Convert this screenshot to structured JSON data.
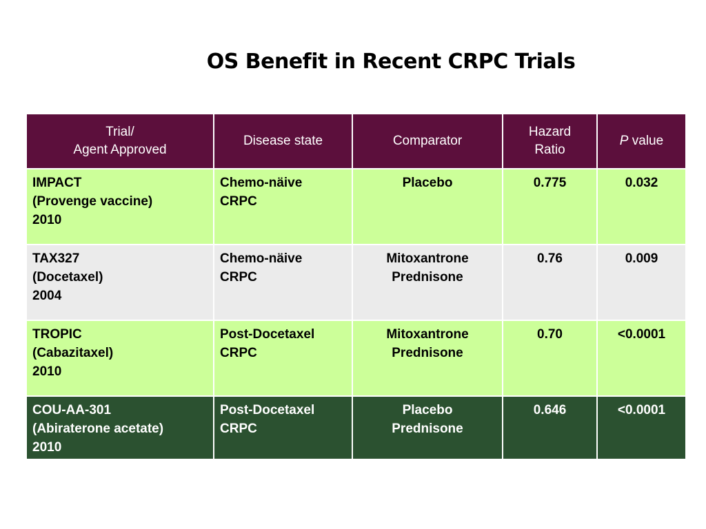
{
  "title": "OS Benefit in Recent CRPC Trials",
  "colors": {
    "header_bg": "#5c0f3c",
    "light_green_row": "#ccff99",
    "grey_row": "#ebebeb",
    "dark_green_row": "#2b5130",
    "header_text": "#ffffff"
  },
  "table": {
    "headers": {
      "trial": [
        "Trial/",
        "Agent Approved"
      ],
      "disease_state": "Disease state",
      "comparator": "Comparator",
      "hazard_ratio": [
        "Hazard",
        "Ratio"
      ],
      "p_value_italic": "P",
      "p_value_rest": " value"
    },
    "rows": [
      {
        "trial": [
          "IMPACT",
          "(Provenge vaccine)",
          "2010"
        ],
        "disease_state": [
          "Chemo-näive",
          "CRPC"
        ],
        "comparator": [
          "Placebo"
        ],
        "hazard_ratio": "0.775",
        "p_value": "0.032",
        "bg": "#ccff99",
        "fg": "#000000"
      },
      {
        "trial": [
          "TAX327",
          "(Docetaxel)",
          "2004"
        ],
        "disease_state": [
          "Chemo-näive",
          "CRPC"
        ],
        "comparator": [
          "Mitoxantrone",
          "Prednisone"
        ],
        "hazard_ratio": "0.76",
        "p_value": "0.009",
        "bg": "#ebebeb",
        "fg": "#000000"
      },
      {
        "trial": [
          "TROPIC",
          "(Cabazitaxel)",
          "2010"
        ],
        "disease_state": [
          "Post-Docetaxel",
          "CRPC"
        ],
        "comparator": [
          "Mitoxantrone",
          "Prednisone"
        ],
        "hazard_ratio": "0.70",
        "p_value": "<0.0001",
        "bg": "#ccff99",
        "fg": "#000000"
      },
      {
        "trial": [
          "COU-AA-301",
          "(Abiraterone acetate)",
          "2010"
        ],
        "disease_state": [
          "Post-Docetaxel",
          "CRPC"
        ],
        "comparator": [
          "Placebo",
          "Prednisone"
        ],
        "hazard_ratio": "0.646",
        "p_value": "<0.0001",
        "bg": "#2b5130",
        "fg": "#ffffff"
      }
    ]
  }
}
